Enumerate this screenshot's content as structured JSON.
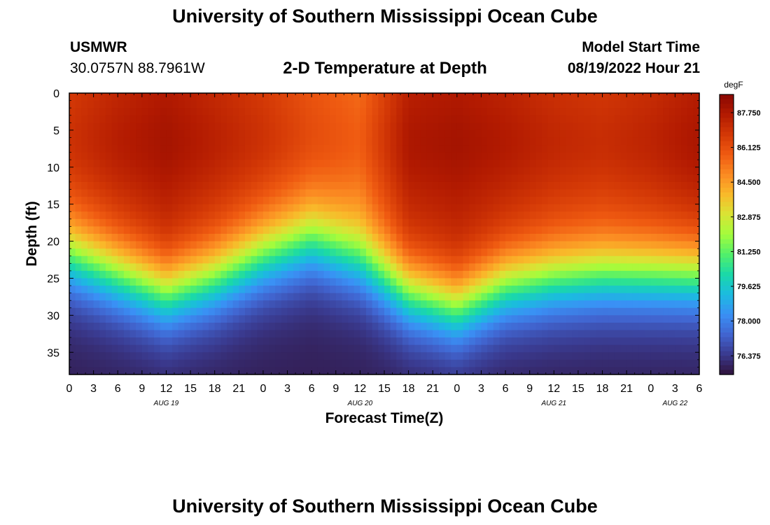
{
  "header": {
    "title": "University of Southern Mississippi Ocean Cube",
    "station": "USMWR",
    "coords": "30.0757N  88.7961W",
    "subtitle": "2-D Temperature at Depth",
    "model_start_label": "Model Start Time",
    "model_start_value": "08/19/2022 Hour 21"
  },
  "footer": {
    "title": "University of Southern Mississippi Ocean Cube"
  },
  "colors": {
    "background": "#ffffff",
    "text": "#000000",
    "colormap": [
      "#30123b",
      "#3a3a8f",
      "#4165d0",
      "#3a90f5",
      "#1bbbe0",
      "#1ad9a8",
      "#52f06a",
      "#a4fc3c",
      "#d9e435",
      "#f9b92a",
      "#fb8a22",
      "#ef5a11",
      "#d33806",
      "#b21a01",
      "#8a0802"
    ]
  },
  "chart_data": {
    "type": "heatmap",
    "xlabel": "Forecast Time(Z)",
    "ylabel": "Depth (ft)",
    "x_range_hours": [
      0,
      78
    ],
    "ylim": [
      0,
      38
    ],
    "y_inverted": true,
    "x_tick_labels": [
      "0",
      "3",
      "6",
      "9",
      "12",
      "15",
      "18",
      "21",
      "0",
      "3",
      "6",
      "9",
      "12",
      "15",
      "18",
      "21",
      "0",
      "3",
      "6",
      "9",
      "12",
      "15",
      "18",
      "21",
      "0",
      "3",
      "6"
    ],
    "y_ticks": [
      0,
      5,
      10,
      15,
      20,
      25,
      30,
      35
    ],
    "date_labels": [
      {
        "label": "AUG 19",
        "hour": 12
      },
      {
        "label": "AUG 20",
        "hour": 36
      },
      {
        "label": "AUG 21",
        "hour": 60
      },
      {
        "label": "AUG 22",
        "hour": 75
      }
    ],
    "colorbar": {
      "units": "degF",
      "min": 75.5,
      "max": 88.6,
      "tick_labels": [
        "87.750",
        "86.125",
        "84.500",
        "82.875",
        "81.250",
        "79.625",
        "78.000",
        "76.375"
      ],
      "tick_values": [
        87.75,
        86.125,
        84.5,
        82.875,
        81.25,
        79.625,
        78.0,
        76.375
      ]
    },
    "thermocline_depth_ft": {
      "hours": [
        0,
        6,
        12,
        18,
        24,
        30,
        36,
        42,
        48,
        54,
        60,
        66,
        72,
        78
      ],
      "values": [
        22,
        24.5,
        27,
        25,
        22,
        20,
        22.5,
        27,
        29,
        26,
        25,
        24.5,
        24.5,
        24.5
      ]
    },
    "surface_temp_degF": {
      "hours": [
        0,
        6,
        12,
        18,
        24,
        30,
        36,
        42,
        48,
        54,
        60,
        66,
        72,
        78
      ],
      "values": [
        86.6,
        87.2,
        87.6,
        87.1,
        86.6,
        85.9,
        85.4,
        87.4,
        87.6,
        87.3,
        86.9,
        86.7,
        87.0,
        87.5
      ]
    },
    "bottom_temp_degF": 75.8
  }
}
